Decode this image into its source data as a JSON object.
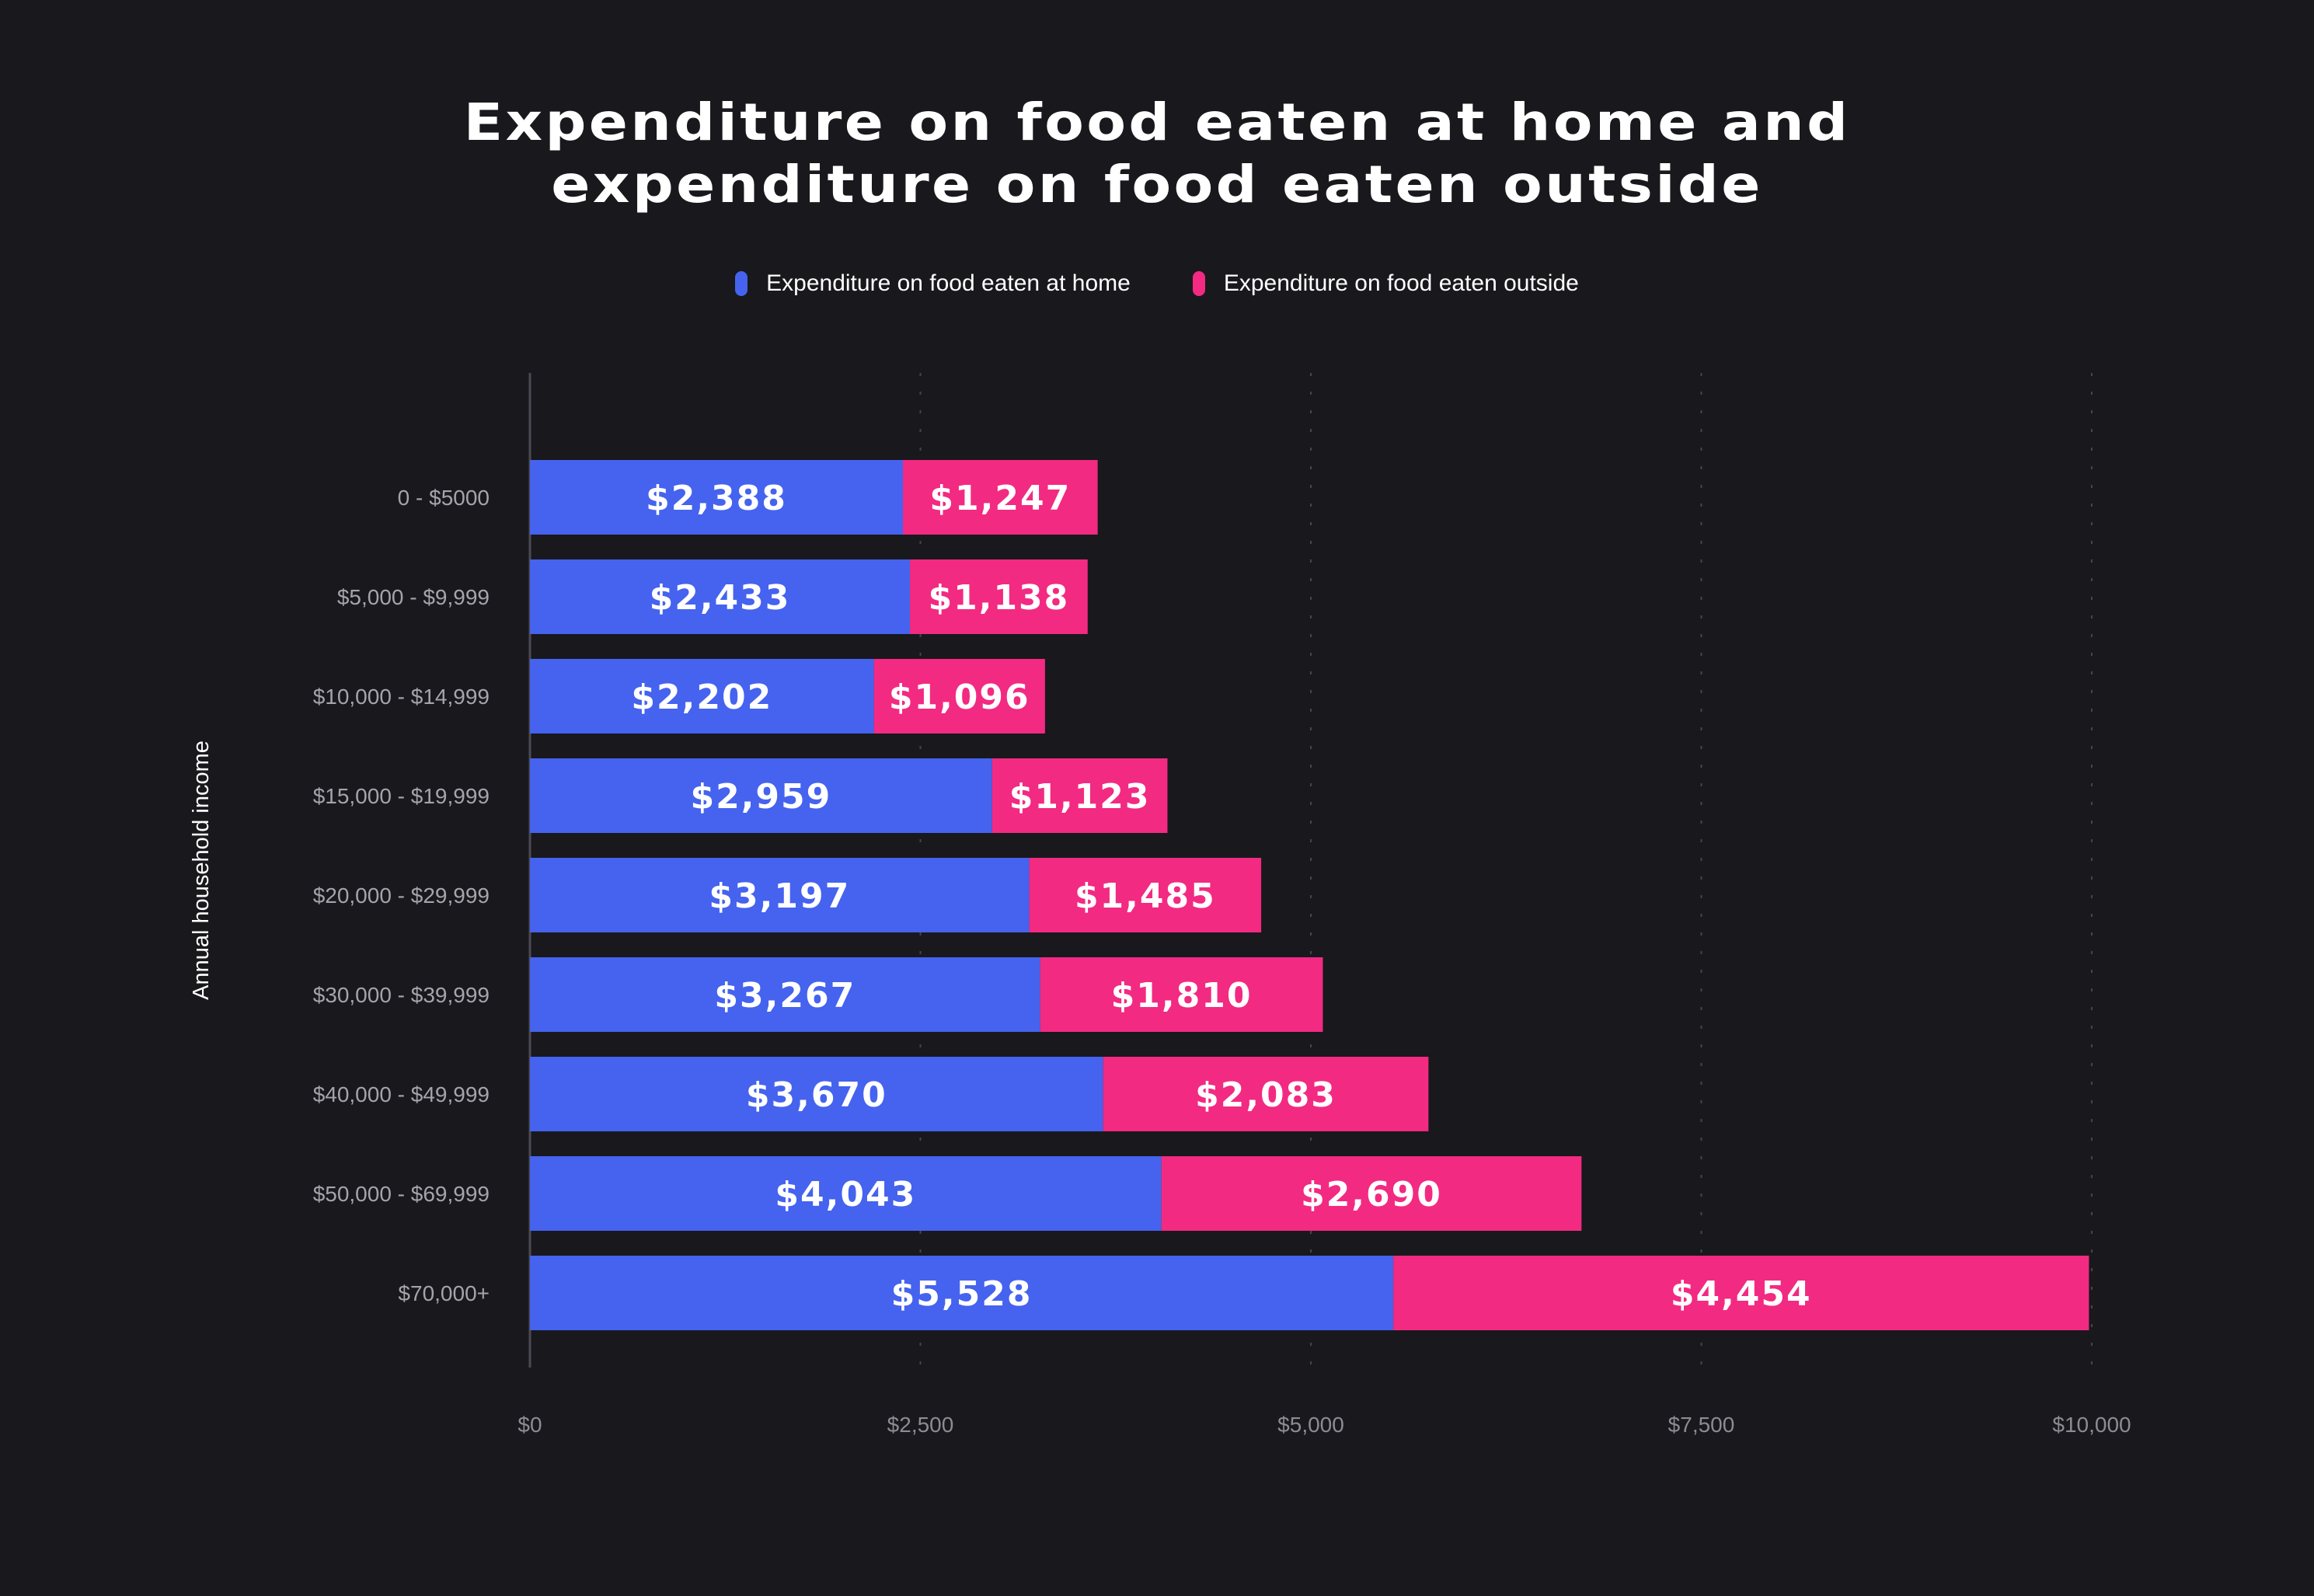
{
  "chart_data": {
    "type": "bar",
    "orientation": "horizontal",
    "stacked": true,
    "title_lines": [
      "Expenditure on food eaten at home and",
      "expenditure on food eaten outside"
    ],
    "xlabel": "",
    "ylabel": "Annual household income",
    "xlim": [
      0,
      10000
    ],
    "xticks": [
      0,
      2500,
      5000,
      7500,
      10000
    ],
    "xtick_labels": [
      "$0",
      "$2,500",
      "$5,000",
      "$7,500",
      "$10,000"
    ],
    "grid": "vertical dotted",
    "legend_placement": "top-center",
    "categories": [
      "0 - $5000",
      "$5,000 - $9,999",
      "$10,000 - $14,999",
      "$15,000 - $19,999",
      "$20,000 - $29,999",
      "$30,000 - $39,999",
      "$40,000 - $49,999",
      "$50,000 - $69,999",
      "$70,000+"
    ],
    "series": [
      {
        "name": "Expenditure on food eaten at home",
        "color": "#4563ee",
        "values": [
          2388,
          2433,
          2202,
          2959,
          3197,
          3267,
          3670,
          4043,
          5528
        ],
        "labels": [
          "$2,388",
          "$2,433",
          "$2,202",
          "$2,959",
          "$3,197",
          "$3,267",
          "$3,670",
          "$4,043",
          "$5,528"
        ]
      },
      {
        "name": "Expenditure on food eaten outside",
        "color": "#f22a82",
        "values": [
          1247,
          1138,
          1096,
          1123,
          1485,
          1810,
          2083,
          2690,
          4454
        ],
        "labels": [
          "$1,247",
          "$1,138",
          "$1,096",
          "$1,123",
          "$1,485",
          "$1,810",
          "$2,083",
          "$2,690",
          "$4,454"
        ]
      }
    ]
  }
}
